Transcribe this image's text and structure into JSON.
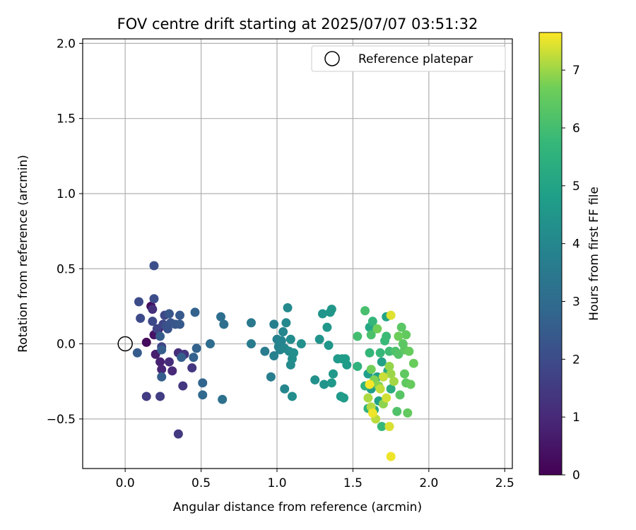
{
  "chart_data": {
    "type": "scatter",
    "title": "FOV centre drift starting at 2025/07/07 03:51:32",
    "xlabel": "Angular distance from reference (arcmin)",
    "ylabel": "Rotation from reference (arcmin)",
    "xlim": [
      -0.28,
      2.55
    ],
    "ylim": [
      -0.83,
      2.03
    ],
    "xticks": [
      0.0,
      0.5,
      1.0,
      1.5,
      2.0,
      2.5
    ],
    "xtick_labels": [
      "0.0",
      "0.5",
      "1.0",
      "1.5",
      "2.0",
      "2.5"
    ],
    "yticks": [
      -0.5,
      0.0,
      0.5,
      1.0,
      1.5,
      2.0
    ],
    "ytick_labels": [
      "−0.5",
      "0.0",
      "0.5",
      "1.0",
      "1.5",
      "2.0"
    ],
    "grid": true,
    "legend": {
      "position": "top-right",
      "label": "Reference platepar"
    },
    "reference_point": {
      "x": 0.0,
      "y": 0.0
    },
    "colorbar": {
      "label": "Hours from first FF file",
      "min": 0.0,
      "max": 7.65,
      "ticks": [
        0,
        1,
        2,
        3,
        4,
        5,
        6,
        7
      ],
      "tick_labels": [
        "0",
        "1",
        "2",
        "3",
        "4",
        "5",
        "6",
        "7"
      ],
      "colormap": "viridis"
    },
    "points": [
      {
        "x": 0.14,
        "y": 0.01,
        "c": 0.25
      },
      {
        "x": 0.17,
        "y": 0.25,
        "c": 0.3
      },
      {
        "x": 0.19,
        "y": 0.06,
        "c": 0.45
      },
      {
        "x": 0.22,
        "y": 0.1,
        "c": 0.6
      },
      {
        "x": 0.2,
        "y": -0.07,
        "c": 0.7
      },
      {
        "x": 0.23,
        "y": -0.12,
        "c": 0.8
      },
      {
        "x": 0.24,
        "y": -0.17,
        "c": 0.9
      },
      {
        "x": 0.31,
        "y": -0.18,
        "c": 1.0
      },
      {
        "x": 0.29,
        "y": -0.12,
        "c": 1.1
      },
      {
        "x": 0.35,
        "y": -0.06,
        "c": 1.15
      },
      {
        "x": 0.18,
        "y": 0.23,
        "c": 1.2
      },
      {
        "x": 0.39,
        "y": -0.07,
        "c": 1.3
      },
      {
        "x": 0.44,
        "y": -0.16,
        "c": 1.35
      },
      {
        "x": 0.38,
        "y": -0.28,
        "c": 1.4
      },
      {
        "x": 0.35,
        "y": -0.6,
        "c": 1.45
      },
      {
        "x": 0.14,
        "y": -0.35,
        "c": 1.55
      },
      {
        "x": 0.23,
        "y": -0.35,
        "c": 1.6
      },
      {
        "x": 0.24,
        "y": -0.02,
        "c": 1.7
      },
      {
        "x": 0.21,
        "y": 0.1,
        "c": 1.75
      },
      {
        "x": 0.25,
        "y": 0.13,
        "c": 1.8
      },
      {
        "x": 0.26,
        "y": 0.19,
        "c": 1.85
      },
      {
        "x": 0.18,
        "y": 0.15,
        "c": 1.9
      },
      {
        "x": 0.1,
        "y": 0.17,
        "c": 1.95
      },
      {
        "x": 0.09,
        "y": 0.28,
        "c": 2.0
      },
      {
        "x": 0.19,
        "y": 0.3,
        "c": 2.05
      },
      {
        "x": 0.19,
        "y": 0.52,
        "c": 2.1
      },
      {
        "x": 0.27,
        "y": 0.12,
        "c": 2.15
      },
      {
        "x": 0.28,
        "y": 0.1,
        "c": 2.2
      },
      {
        "x": 0.3,
        "y": 0.14,
        "c": 2.25
      },
      {
        "x": 0.29,
        "y": 0.2,
        "c": 2.3
      },
      {
        "x": 0.33,
        "y": 0.13,
        "c": 2.35
      },
      {
        "x": 0.36,
        "y": 0.13,
        "c": 2.4
      },
      {
        "x": 0.36,
        "y": 0.19,
        "c": 2.45
      },
      {
        "x": 0.08,
        "y": -0.06,
        "c": 2.5
      },
      {
        "x": 0.23,
        "y": 0.05,
        "c": 2.5
      },
      {
        "x": 0.24,
        "y": -0.04,
        "c": 2.55
      },
      {
        "x": 0.24,
        "y": -0.22,
        "c": 2.55
      },
      {
        "x": 0.37,
        "y": -0.09,
        "c": 2.6
      },
      {
        "x": 0.45,
        "y": -0.09,
        "c": 2.65
      },
      {
        "x": 0.47,
        "y": -0.03,
        "c": 2.7
      },
      {
        "x": 0.46,
        "y": 0.21,
        "c": 2.7
      },
      {
        "x": 0.51,
        "y": -0.26,
        "c": 2.8
      },
      {
        "x": 0.51,
        "y": -0.34,
        "c": 2.9
      },
      {
        "x": 0.56,
        "y": 0.0,
        "c": 3.0
      },
      {
        "x": 0.63,
        "y": 0.18,
        "c": 3.1
      },
      {
        "x": 0.65,
        "y": 0.13,
        "c": 3.15
      },
      {
        "x": 0.64,
        "y": -0.37,
        "c": 3.2
      },
      {
        "x": 0.83,
        "y": 0.14,
        "c": 3.5
      },
      {
        "x": 0.83,
        "y": 0.0,
        "c": 3.55
      },
      {
        "x": 0.92,
        "y": -0.05,
        "c": 3.6
      },
      {
        "x": 0.96,
        "y": -0.22,
        "c": 3.65
      },
      {
        "x": 0.98,
        "y": 0.13,
        "c": 3.7
      },
      {
        "x": 0.98,
        "y": -0.08,
        "c": 3.75
      },
      {
        "x": 1.0,
        "y": 0.03,
        "c": 3.8
      },
      {
        "x": 1.01,
        "y": -0.02,
        "c": 3.85
      },
      {
        "x": 1.02,
        "y": -0.04,
        "c": 3.9
      },
      {
        "x": 1.03,
        "y": 0.02,
        "c": 3.9
      },
      {
        "x": 1.04,
        "y": 0.08,
        "c": 3.95
      },
      {
        "x": 1.05,
        "y": -0.03,
        "c": 4.0
      },
      {
        "x": 1.05,
        "y": -0.3,
        "c": 4.0
      },
      {
        "x": 1.06,
        "y": 0.14,
        "c": 4.05
      },
      {
        "x": 1.07,
        "y": 0.24,
        "c": 4.1
      },
      {
        "x": 1.08,
        "y": -0.05,
        "c": 4.1
      },
      {
        "x": 1.09,
        "y": -0.14,
        "c": 4.15
      },
      {
        "x": 1.09,
        "y": 0.03,
        "c": 4.15
      },
      {
        "x": 1.1,
        "y": -0.1,
        "c": 4.2
      },
      {
        "x": 1.1,
        "y": -0.35,
        "c": 4.2
      },
      {
        "x": 1.11,
        "y": -0.06,
        "c": 4.25
      },
      {
        "x": 1.16,
        "y": 0.0,
        "c": 4.3
      },
      {
        "x": 1.25,
        "y": -0.24,
        "c": 4.35
      },
      {
        "x": 1.28,
        "y": 0.03,
        "c": 4.4
      },
      {
        "x": 1.3,
        "y": 0.2,
        "c": 4.45
      },
      {
        "x": 1.31,
        "y": -0.27,
        "c": 4.45
      },
      {
        "x": 1.33,
        "y": 0.11,
        "c": 4.5
      },
      {
        "x": 1.34,
        "y": -0.01,
        "c": 4.5
      },
      {
        "x": 1.35,
        "y": 0.21,
        "c": 4.55
      },
      {
        "x": 1.36,
        "y": 0.23,
        "c": 4.55
      },
      {
        "x": 1.36,
        "y": -0.26,
        "c": 4.6
      },
      {
        "x": 1.37,
        "y": -0.2,
        "c": 4.6
      },
      {
        "x": 1.4,
        "y": -0.1,
        "c": 4.65
      },
      {
        "x": 1.42,
        "y": -0.35,
        "c": 4.65
      },
      {
        "x": 1.43,
        "y": -0.1,
        "c": 4.7
      },
      {
        "x": 1.44,
        "y": -0.36,
        "c": 4.7
      },
      {
        "x": 1.45,
        "y": -0.1,
        "c": 4.75
      },
      {
        "x": 1.46,
        "y": -0.14,
        "c": 4.75
      },
      {
        "x": 1.6,
        "y": -0.2,
        "c": 4.8
      },
      {
        "x": 1.62,
        "y": -0.3,
        "c": 4.8
      },
      {
        "x": 1.66,
        "y": -0.22,
        "c": 4.85
      },
      {
        "x": 1.67,
        "y": -0.38,
        "c": 4.85
      },
      {
        "x": 1.69,
        "y": -0.12,
        "c": 4.9
      },
      {
        "x": 1.7,
        "y": -0.22,
        "c": 4.9
      },
      {
        "x": 1.72,
        "y": 0.18,
        "c": 5.0
      },
      {
        "x": 1.64,
        "y": -0.44,
        "c": 5.05
      },
      {
        "x": 1.61,
        "y": 0.11,
        "c": 5.1
      },
      {
        "x": 1.73,
        "y": -0.18,
        "c": 5.2
      },
      {
        "x": 1.75,
        "y": -0.3,
        "c": 5.3
      },
      {
        "x": 1.53,
        "y": -0.15,
        "c": 5.5
      },
      {
        "x": 1.58,
        "y": -0.28,
        "c": 5.55
      },
      {
        "x": 1.6,
        "y": -0.43,
        "c": 5.6
      },
      {
        "x": 1.61,
        "y": -0.06,
        "c": 5.65
      },
      {
        "x": 1.63,
        "y": 0.15,
        "c": 5.7
      },
      {
        "x": 1.68,
        "y": -0.06,
        "c": 5.75
      },
      {
        "x": 1.69,
        "y": -0.55,
        "c": 5.75
      },
      {
        "x": 1.71,
        "y": 0.02,
        "c": 5.8
      },
      {
        "x": 1.72,
        "y": 0.05,
        "c": 5.85
      },
      {
        "x": 1.74,
        "y": -0.05,
        "c": 5.9
      },
      {
        "x": 1.53,
        "y": 0.05,
        "c": 6.0
      },
      {
        "x": 1.58,
        "y": 0.22,
        "c": 6.05
      },
      {
        "x": 1.62,
        "y": 0.06,
        "c": 6.1
      },
      {
        "x": 1.78,
        "y": -0.05,
        "c": 6.15
      },
      {
        "x": 1.79,
        "y": -0.45,
        "c": 6.2
      },
      {
        "x": 1.8,
        "y": -0.07,
        "c": 6.25
      },
      {
        "x": 1.81,
        "y": -0.34,
        "c": 6.3
      },
      {
        "x": 1.82,
        "y": 0.11,
        "c": 6.35
      },
      {
        "x": 1.83,
        "y": 0.0,
        "c": 6.4
      },
      {
        "x": 1.84,
        "y": -0.04,
        "c": 6.4
      },
      {
        "x": 1.84,
        "y": -0.2,
        "c": 6.45
      },
      {
        "x": 1.85,
        "y": -0.26,
        "c": 6.45
      },
      {
        "x": 1.85,
        "y": 0.06,
        "c": 6.5
      },
      {
        "x": 1.86,
        "y": -0.46,
        "c": 6.5
      },
      {
        "x": 1.87,
        "y": -0.05,
        "c": 6.55
      },
      {
        "x": 1.88,
        "y": -0.27,
        "c": 6.55
      },
      {
        "x": 1.9,
        "y": -0.13,
        "c": 6.6
      },
      {
        "x": 1.8,
        "y": 0.05,
        "c": 6.65
      },
      {
        "x": 1.66,
        "y": 0.1,
        "c": 6.7
      },
      {
        "x": 1.62,
        "y": -0.17,
        "c": 6.7
      },
      {
        "x": 1.64,
        "y": -0.24,
        "c": 6.8
      },
      {
        "x": 1.67,
        "y": -0.28,
        "c": 6.85
      },
      {
        "x": 1.7,
        "y": -0.4,
        "c": 6.9
      },
      {
        "x": 1.74,
        "y": -0.15,
        "c": 6.95
      },
      {
        "x": 1.75,
        "y": -0.2,
        "c": 7.0
      },
      {
        "x": 1.77,
        "y": -0.25,
        "c": 7.05
      },
      {
        "x": 1.6,
        "y": -0.36,
        "c": 7.1
      },
      {
        "x": 1.62,
        "y": -0.42,
        "c": 7.15
      },
      {
        "x": 1.65,
        "y": -0.5,
        "c": 7.2
      },
      {
        "x": 1.68,
        "y": -0.3,
        "c": 7.25
      },
      {
        "x": 1.7,
        "y": -0.22,
        "c": 7.3
      },
      {
        "x": 1.72,
        "y": -0.36,
        "c": 7.35
      },
      {
        "x": 1.74,
        "y": -0.55,
        "c": 7.4
      },
      {
        "x": 1.75,
        "y": 0.19,
        "c": 7.45
      },
      {
        "x": 1.75,
        "y": -0.75,
        "c": 7.55
      },
      {
        "x": 1.63,
        "y": -0.46,
        "c": 7.55
      },
      {
        "x": 1.61,
        "y": -0.27,
        "c": 7.6
      }
    ]
  }
}
